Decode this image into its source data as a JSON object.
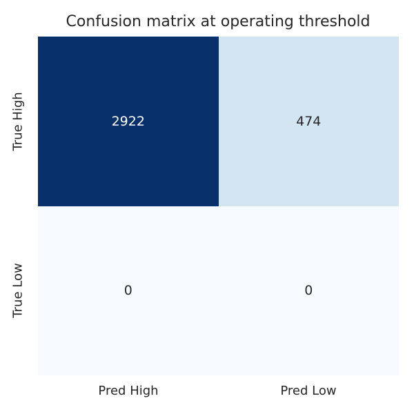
{
  "chart_data": {
    "type": "heatmap",
    "title": "Confusion matrix at operating threshold",
    "row_labels": [
      "True High",
      "True Low"
    ],
    "col_labels": [
      "Pred High",
      "Pred Low"
    ],
    "values": [
      [
        2922,
        474
      ],
      [
        0,
        0
      ]
    ],
    "cell_colors": [
      [
        "#08306b",
        "#d3e4f3"
      ],
      [
        "#f7fbff",
        "#f7fbff"
      ]
    ],
    "cell_text_colors": [
      [
        "#ffffff",
        "#262626"
      ],
      [
        "#262626",
        "#262626"
      ]
    ],
    "colormap": "Blues",
    "value_range": [
      0,
      2922
    ],
    "legend": "none",
    "grid": "off",
    "axis_spines": "off"
  },
  "colors": {
    "background": "#ffffff",
    "text": "#262626"
  }
}
